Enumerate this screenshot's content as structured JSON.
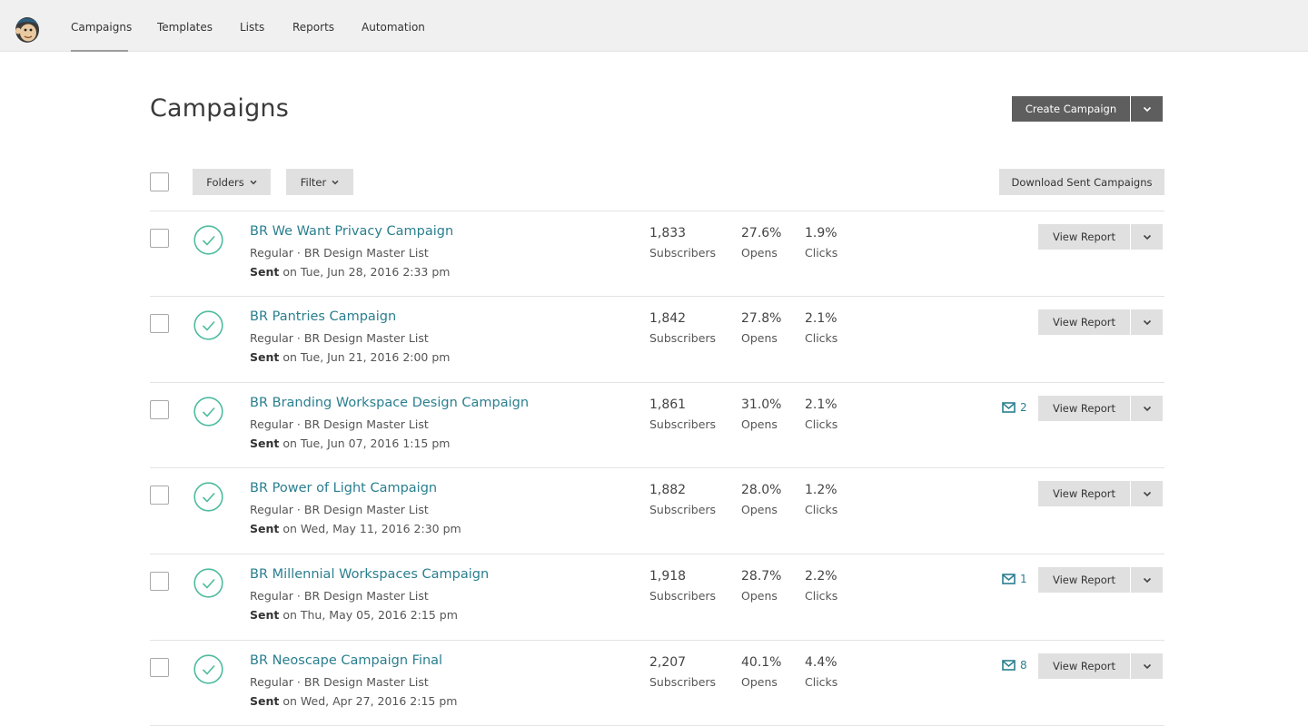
{
  "nav": {
    "logo_icon": "chimp-logo",
    "items": [
      {
        "label": "Campaigns",
        "active": true
      },
      {
        "label": "Templates",
        "active": false
      },
      {
        "label": "Lists",
        "active": false
      },
      {
        "label": "Reports",
        "active": false
      },
      {
        "label": "Automation",
        "active": false
      }
    ]
  },
  "page": {
    "title": "Campaigns",
    "create_label": "Create Campaign"
  },
  "toolbar": {
    "folders_label": "Folders",
    "filter_label": "Filter",
    "download_label": "Download Sent Campaigns"
  },
  "colors": {
    "accent": "#2a7f8f",
    "status_ok": "#4dbb9f",
    "dark_button": "#5e5e5e",
    "light_button": "#e0e0e0"
  },
  "campaigns": [
    {
      "title": "BR We Want Privacy Campaign",
      "meta": "Regular · BR Design Master List",
      "sent_label": "Sent",
      "sent_on": " on Tue, Jun 28, 2016 2:33 pm",
      "subscribers": "1,833",
      "subscribers_label": "Subscribers",
      "opens": "27.6%",
      "opens_label": "Opens",
      "clicks": "1.9%",
      "clicks_label": "Clicks",
      "mail_count": "",
      "view_label": "View Report"
    },
    {
      "title": "BR Pantries Campaign",
      "meta": "Regular · BR Design Master List",
      "sent_label": "Sent",
      "sent_on": " on Tue, Jun 21, 2016 2:00 pm",
      "subscribers": "1,842",
      "subscribers_label": "Subscribers",
      "opens": "27.8%",
      "opens_label": "Opens",
      "clicks": "2.1%",
      "clicks_label": "Clicks",
      "mail_count": "",
      "view_label": "View Report"
    },
    {
      "title": "BR Branding Workspace Design Campaign",
      "meta": "Regular · BR Design Master List",
      "sent_label": "Sent",
      "sent_on": " on Tue, Jun 07, 2016 1:15 pm",
      "subscribers": "1,861",
      "subscribers_label": "Subscribers",
      "opens": "31.0%",
      "opens_label": "Opens",
      "clicks": "2.1%",
      "clicks_label": "Clicks",
      "mail_count": "2",
      "view_label": "View Report"
    },
    {
      "title": "BR Power of Light Campaign",
      "meta": "Regular · BR Design Master List",
      "sent_label": "Sent",
      "sent_on": " on Wed, May 11, 2016 2:30 pm",
      "subscribers": "1,882",
      "subscribers_label": "Subscribers",
      "opens": "28.0%",
      "opens_label": "Opens",
      "clicks": "1.2%",
      "clicks_label": "Clicks",
      "mail_count": "",
      "view_label": "View Report"
    },
    {
      "title": "BR Millennial Workspaces Campaign",
      "meta": "Regular · BR Design Master List",
      "sent_label": "Sent",
      "sent_on": " on Thu, May 05, 2016 2:15 pm",
      "subscribers": "1,918",
      "subscribers_label": "Subscribers",
      "opens": "28.7%",
      "opens_label": "Opens",
      "clicks": "2.2%",
      "clicks_label": "Clicks",
      "mail_count": "1",
      "view_label": "View Report"
    },
    {
      "title": "BR Neoscape Campaign Final",
      "meta": "Regular · BR Design Master List",
      "sent_label": "Sent",
      "sent_on": " on Wed, Apr 27, 2016 2:15 pm",
      "subscribers": "2,207",
      "subscribers_label": "Subscribers",
      "opens": "40.1%",
      "opens_label": "Opens",
      "clicks": "4.4%",
      "clicks_label": "Clicks",
      "mail_count": "8",
      "view_label": "View Report"
    }
  ]
}
